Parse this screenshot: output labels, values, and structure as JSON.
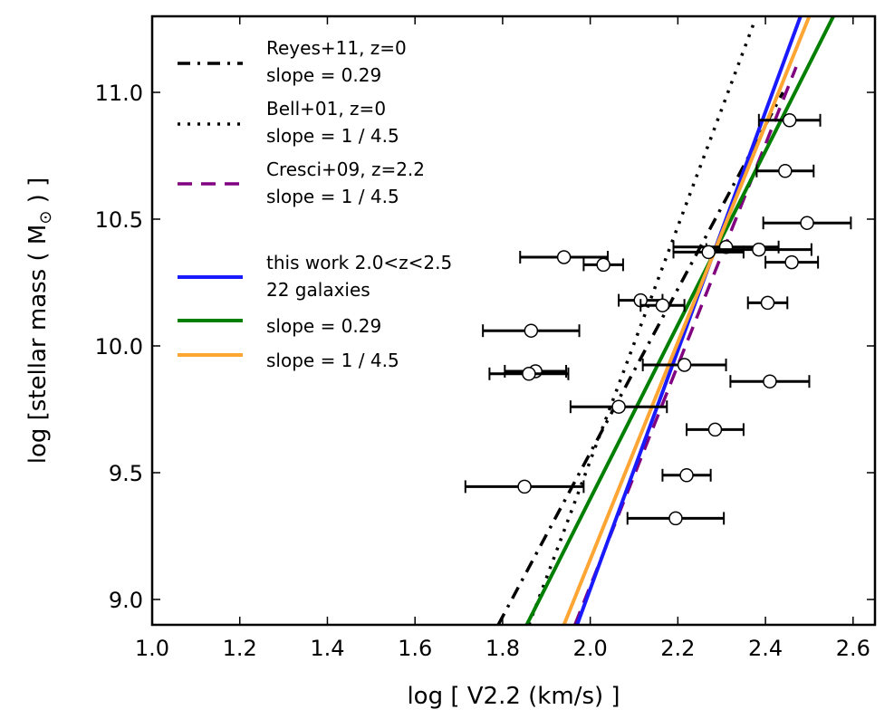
{
  "chart_data": {
    "type": "scatter",
    "xlabel": "log [ V2.2 (km/s) ]",
    "ylabel_main": "log [stellar mass ( M",
    "ylabel_sub": "⊙",
    "ylabel_end": " ) ]",
    "xlim": [
      1.0,
      2.65
    ],
    "ylim": [
      8.9,
      11.3
    ],
    "xticks": [
      1.0,
      1.2,
      1.4,
      1.6,
      1.8,
      2.0,
      2.2,
      2.4,
      2.6
    ],
    "xtick_labels": [
      "1.0",
      "1.2",
      "1.4",
      "1.6",
      "1.8",
      "2.0",
      "2.2",
      "2.4",
      "2.6"
    ],
    "yticks": [
      9.0,
      9.5,
      10.0,
      10.5,
      11.0
    ],
    "ytick_labels": [
      "9.0",
      "9.5",
      "10.0",
      "10.5",
      "11.0"
    ],
    "colors": {
      "reyes": "#000000",
      "bell": "#000000",
      "cresci": "#800080",
      "this_work": "#1a1aff",
      "slope029": "#007f00",
      "slope145": "#ffa533"
    },
    "legend": {
      "placement": "top-left",
      "entries": [
        {
          "key": "reyes",
          "style": "dashdot",
          "line1": "Reyes+11, z=0",
          "line2": "slope = 0.29"
        },
        {
          "key": "bell",
          "style": "dotted",
          "line1": "Bell+01, z=0",
          "line2": "slope = 1 / 4.5"
        },
        {
          "key": "cresci",
          "style": "dashed",
          "line1": "Cresci+09, z=2.2",
          "line2": "slope = 1 / 4.5"
        },
        {
          "key": "this_work",
          "style": "solid",
          "line1": "this work 2.0<z<2.5",
          "line2": "22 galaxies"
        },
        {
          "key": "slope029",
          "style": "solid",
          "line1": "slope = 0.29",
          "line2": ""
        },
        {
          "key": "slope145",
          "style": "solid",
          "line1": "slope = 1 / 4.5",
          "line2": ""
        }
      ]
    },
    "lines": [
      {
        "key": "reyes",
        "style": "dashdot",
        "x": [
          1.79,
          2.44
        ],
        "y": [
          8.9,
          11.0
        ]
      },
      {
        "key": "bell",
        "style": "dotted",
        "x": [
          1.86,
          2.375
        ],
        "y": [
          8.9,
          11.28
        ]
      },
      {
        "key": "cresci",
        "style": "dashed",
        "x": [
          1.965,
          2.47
        ],
        "y": [
          8.9,
          11.1
        ]
      },
      {
        "key": "this_work",
        "style": "solid",
        "x": [
          1.97,
          2.48
        ],
        "y": [
          8.9,
          11.3
        ]
      },
      {
        "key": "slope029",
        "style": "solid",
        "x": [
          1.855,
          2.555
        ],
        "y": [
          8.9,
          11.3
        ]
      },
      {
        "key": "slope145",
        "style": "solid",
        "x": [
          1.94,
          2.5
        ],
        "y": [
          8.9,
          11.3
        ]
      }
    ],
    "points": [
      {
        "x": 2.455,
        "y": 10.89,
        "xerr": 0.07
      },
      {
        "x": 2.445,
        "y": 10.69,
        "xerr": 0.065
      },
      {
        "x": 2.495,
        "y": 10.485,
        "xerr": 0.1
      },
      {
        "x": 1.94,
        "y": 10.35,
        "xerr": 0.1
      },
      {
        "x": 2.03,
        "y": 10.32,
        "xerr": 0.045
      },
      {
        "x": 2.31,
        "y": 10.39,
        "xerr": 0.12
      },
      {
        "x": 2.385,
        "y": 10.38,
        "xerr": 0.12
      },
      {
        "x": 2.27,
        "y": 10.37,
        "xerr": 0.08
      },
      {
        "x": 2.46,
        "y": 10.33,
        "xerr": 0.06
      },
      {
        "x": 2.115,
        "y": 10.18,
        "xerr": 0.05
      },
      {
        "x": 2.165,
        "y": 10.16,
        "xerr": 0.05
      },
      {
        "x": 2.405,
        "y": 10.17,
        "xerr": 0.045
      },
      {
        "x": 1.865,
        "y": 10.06,
        "xerr": 0.11
      },
      {
        "x": 2.215,
        "y": 9.925,
        "xerr": 0.095
      },
      {
        "x": 1.875,
        "y": 9.9,
        "xerr": 0.07
      },
      {
        "x": 1.86,
        "y": 9.89,
        "xerr": 0.09
      },
      {
        "x": 2.41,
        "y": 9.86,
        "xerr": 0.09
      },
      {
        "x": 2.065,
        "y": 9.76,
        "xerr": 0.11
      },
      {
        "x": 2.285,
        "y": 9.67,
        "xerr": 0.065
      },
      {
        "x": 2.22,
        "y": 9.49,
        "xerr": 0.055
      },
      {
        "x": 1.85,
        "y": 9.445,
        "xerr": 0.135
      },
      {
        "x": 2.195,
        "y": 9.32,
        "xerr": 0.11
      }
    ]
  }
}
